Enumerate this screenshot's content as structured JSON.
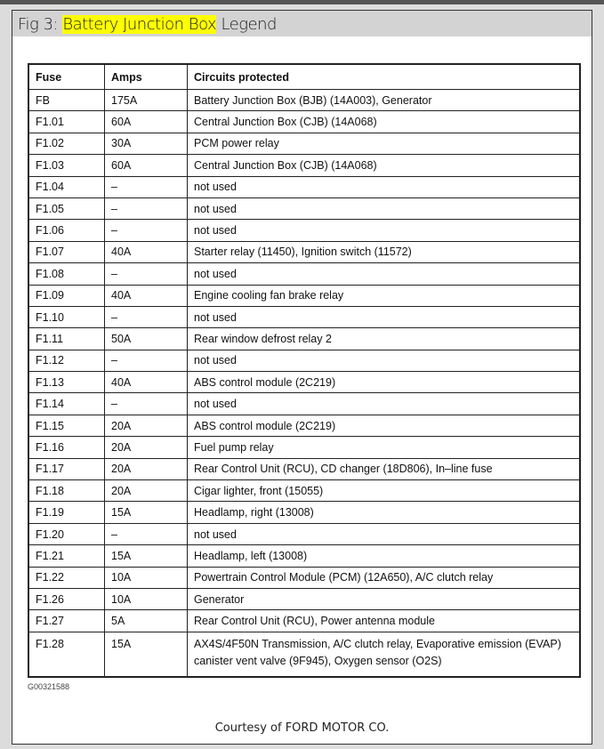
{
  "title": {
    "prefix": "Fig 3: ",
    "highlight": "Battery Junction Box",
    "suffix": " Legend",
    "highlight_color": "#ffff00"
  },
  "table": {
    "headers": [
      "Fuse",
      "Amps",
      "Circuits protected"
    ],
    "rows": [
      [
        "FB",
        "175A",
        "Battery Junction Box (BJB) (14A003), Generator"
      ],
      [
        "F1.01",
        "60A",
        "Central Junction Box (CJB) (14A068)"
      ],
      [
        "F1.02",
        "30A",
        "PCM power relay"
      ],
      [
        "F1.03",
        "60A",
        "Central Junction Box (CJB) (14A068)"
      ],
      [
        "F1.04",
        "–",
        "not used"
      ],
      [
        "F1.05",
        "–",
        "not used"
      ],
      [
        "F1.06",
        "–",
        "not used"
      ],
      [
        "F1.07",
        "40A",
        "Starter relay (11450), Ignition switch (11572)"
      ],
      [
        "F1.08",
        "–",
        "not used"
      ],
      [
        "F1.09",
        "40A",
        "Engine cooling fan brake relay"
      ],
      [
        "F1.10",
        "–",
        "not used"
      ],
      [
        "F1.11",
        "50A",
        "Rear window defrost relay 2"
      ],
      [
        "F1.12",
        "–",
        "not used"
      ],
      [
        "F1.13",
        "40A",
        "ABS control module (2C219)"
      ],
      [
        "F1.14",
        "–",
        "not used"
      ],
      [
        "F1.15",
        "20A",
        "ABS control module (2C219)"
      ],
      [
        "F1.16",
        "20A",
        "Fuel pump relay"
      ],
      [
        "F1.17",
        "20A",
        "Rear Control Unit (RCU), CD changer (18D806), In–line fuse"
      ],
      [
        "F1.18",
        "20A",
        "Cigar lighter, front (15055)"
      ],
      [
        "F1.19",
        "15A",
        "Headlamp, right (13008)"
      ],
      [
        "F1.20",
        "–",
        "not used"
      ],
      [
        "F1.21",
        "15A",
        "Headlamp, left (13008)"
      ],
      [
        "F1.22",
        "10A",
        "Powertrain Control Module (PCM) (12A650), A/C clutch relay"
      ],
      [
        "F1.26",
        "10A",
        "Generator"
      ],
      [
        "F1.27",
        "5A",
        "Rear Control Unit (RCU), Power antenna module"
      ],
      [
        "F1.28",
        "15A",
        "AX4S/4F50N Transmission, A/C clutch relay, Evaporative emission (EVAP) canister vent valve (9F945), Oxygen sensor (O2S)"
      ]
    ]
  },
  "figure_code": "G00321588",
  "courtesy": "Courtesy of FORD MOTOR CO."
}
